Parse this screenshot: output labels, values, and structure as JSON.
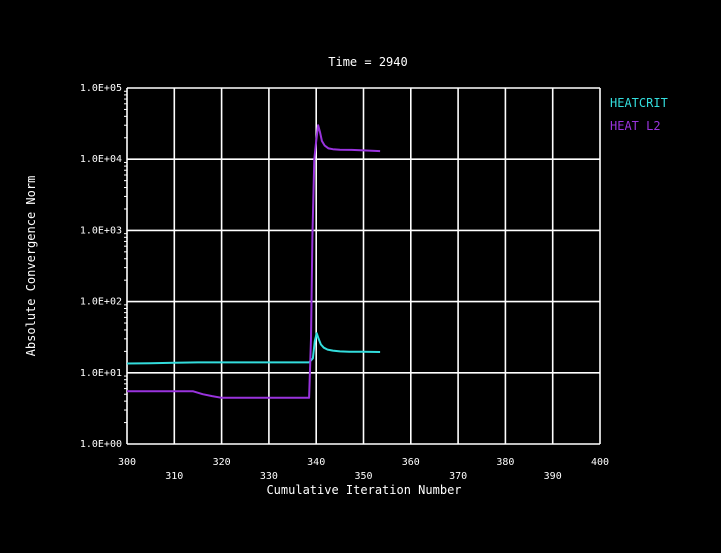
{
  "chart_data": {
    "type": "line",
    "title": "Time = 2940",
    "xlabel": "Cumulative Iteration Number",
    "ylabel": "Absolute Convergence Norm",
    "xlim": [
      300,
      400
    ],
    "ylim": [
      1,
      100000
    ],
    "y_scale": "log",
    "grid": true,
    "legend_position": "top-right",
    "x_ticks": [
      300,
      310,
      320,
      330,
      340,
      350,
      360,
      370,
      380,
      390,
      400
    ],
    "x_tick_labels": [
      "300",
      "310",
      "320",
      "330",
      "340",
      "350",
      "360",
      "370",
      "380",
      "390",
      "400"
    ],
    "y_ticks": [
      1,
      10,
      100,
      1000,
      10000,
      100000
    ],
    "y_tick_labels": [
      "1.0E+00",
      "1.0E+01",
      "1.0E+02",
      "1.0E+03",
      "1.0E+04",
      "1.0E+05"
    ],
    "colors": {
      "background": "#000000",
      "grid": "#ffffff",
      "text": "#ffffff"
    },
    "series": [
      {
        "name": "HEATCRIT",
        "color": "#33dddd",
        "x": [
          300,
          305,
          310,
          315,
          320,
          325,
          330,
          335,
          338.5,
          339.3,
          339.7,
          340.1,
          340.5,
          341.0,
          341.6,
          342.4,
          343.5,
          345.0,
          347.0,
          350.0,
          353.5
        ],
        "y": [
          13.5,
          13.6,
          13.8,
          14.0,
          14.0,
          14.0,
          14.0,
          14.0,
          14.0,
          16.0,
          28.0,
          36.0,
          30.0,
          25.0,
          22.5,
          21.2,
          20.5,
          20.0,
          19.8,
          19.7,
          19.6
        ]
      },
      {
        "name": "HEAT L2",
        "color": "#9933dd",
        "x": [
          300,
          305,
          310,
          314,
          316,
          318,
          320,
          325,
          330,
          335,
          338.5,
          338.9,
          339.2,
          339.6,
          340.0,
          340.4,
          340.8,
          341.2,
          341.8,
          342.6,
          343.5,
          345.0,
          347.5,
          350.0,
          353.5
        ],
        "y": [
          5.5,
          5.5,
          5.5,
          5.5,
          5.0,
          4.7,
          4.45,
          4.45,
          4.45,
          4.45,
          4.45,
          30.0,
          800.0,
          10000.0,
          18000.0,
          30000.0,
          24000.0,
          18000.0,
          15500.0,
          14200.0,
          13800.0,
          13600.0,
          13500.0,
          13300.0,
          13000.0
        ]
      }
    ]
  }
}
